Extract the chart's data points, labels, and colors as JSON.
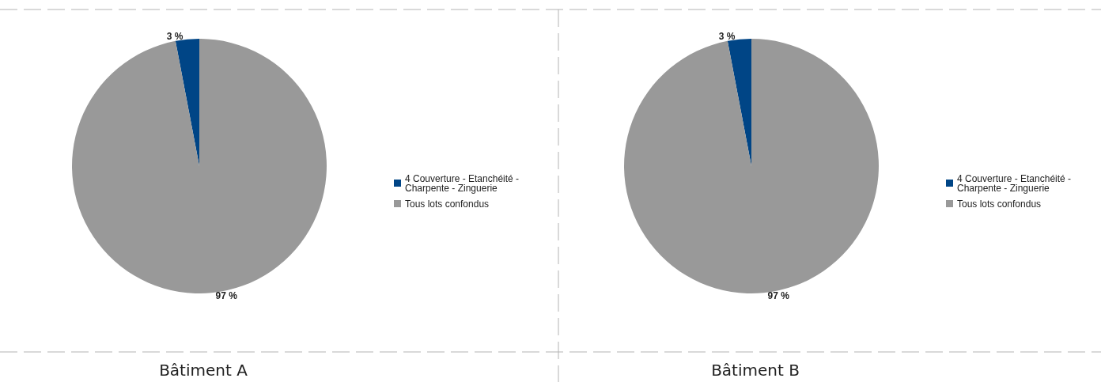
{
  "chart_data": [
    {
      "type": "pie",
      "title": "Bâtiment A",
      "categories": [
        "4 Couverture - Etanchéité - Charpente - Zinguerie",
        "Tous lots confondus"
      ],
      "values": [
        3,
        97
      ],
      "colors": [
        "#004586",
        "#999999"
      ],
      "value_labels": [
        "3 %",
        "97 %"
      ],
      "legend": "right"
    },
    {
      "type": "pie",
      "title": "Bâtiment B",
      "categories": [
        "4 Couverture - Etanchéité - Charpente - Zinguerie",
        "Tous lots confondus"
      ],
      "values": [
        3,
        97
      ],
      "colors": [
        "#004586",
        "#999999"
      ],
      "value_labels": [
        "3 %",
        "97 %"
      ],
      "legend": "right"
    }
  ]
}
